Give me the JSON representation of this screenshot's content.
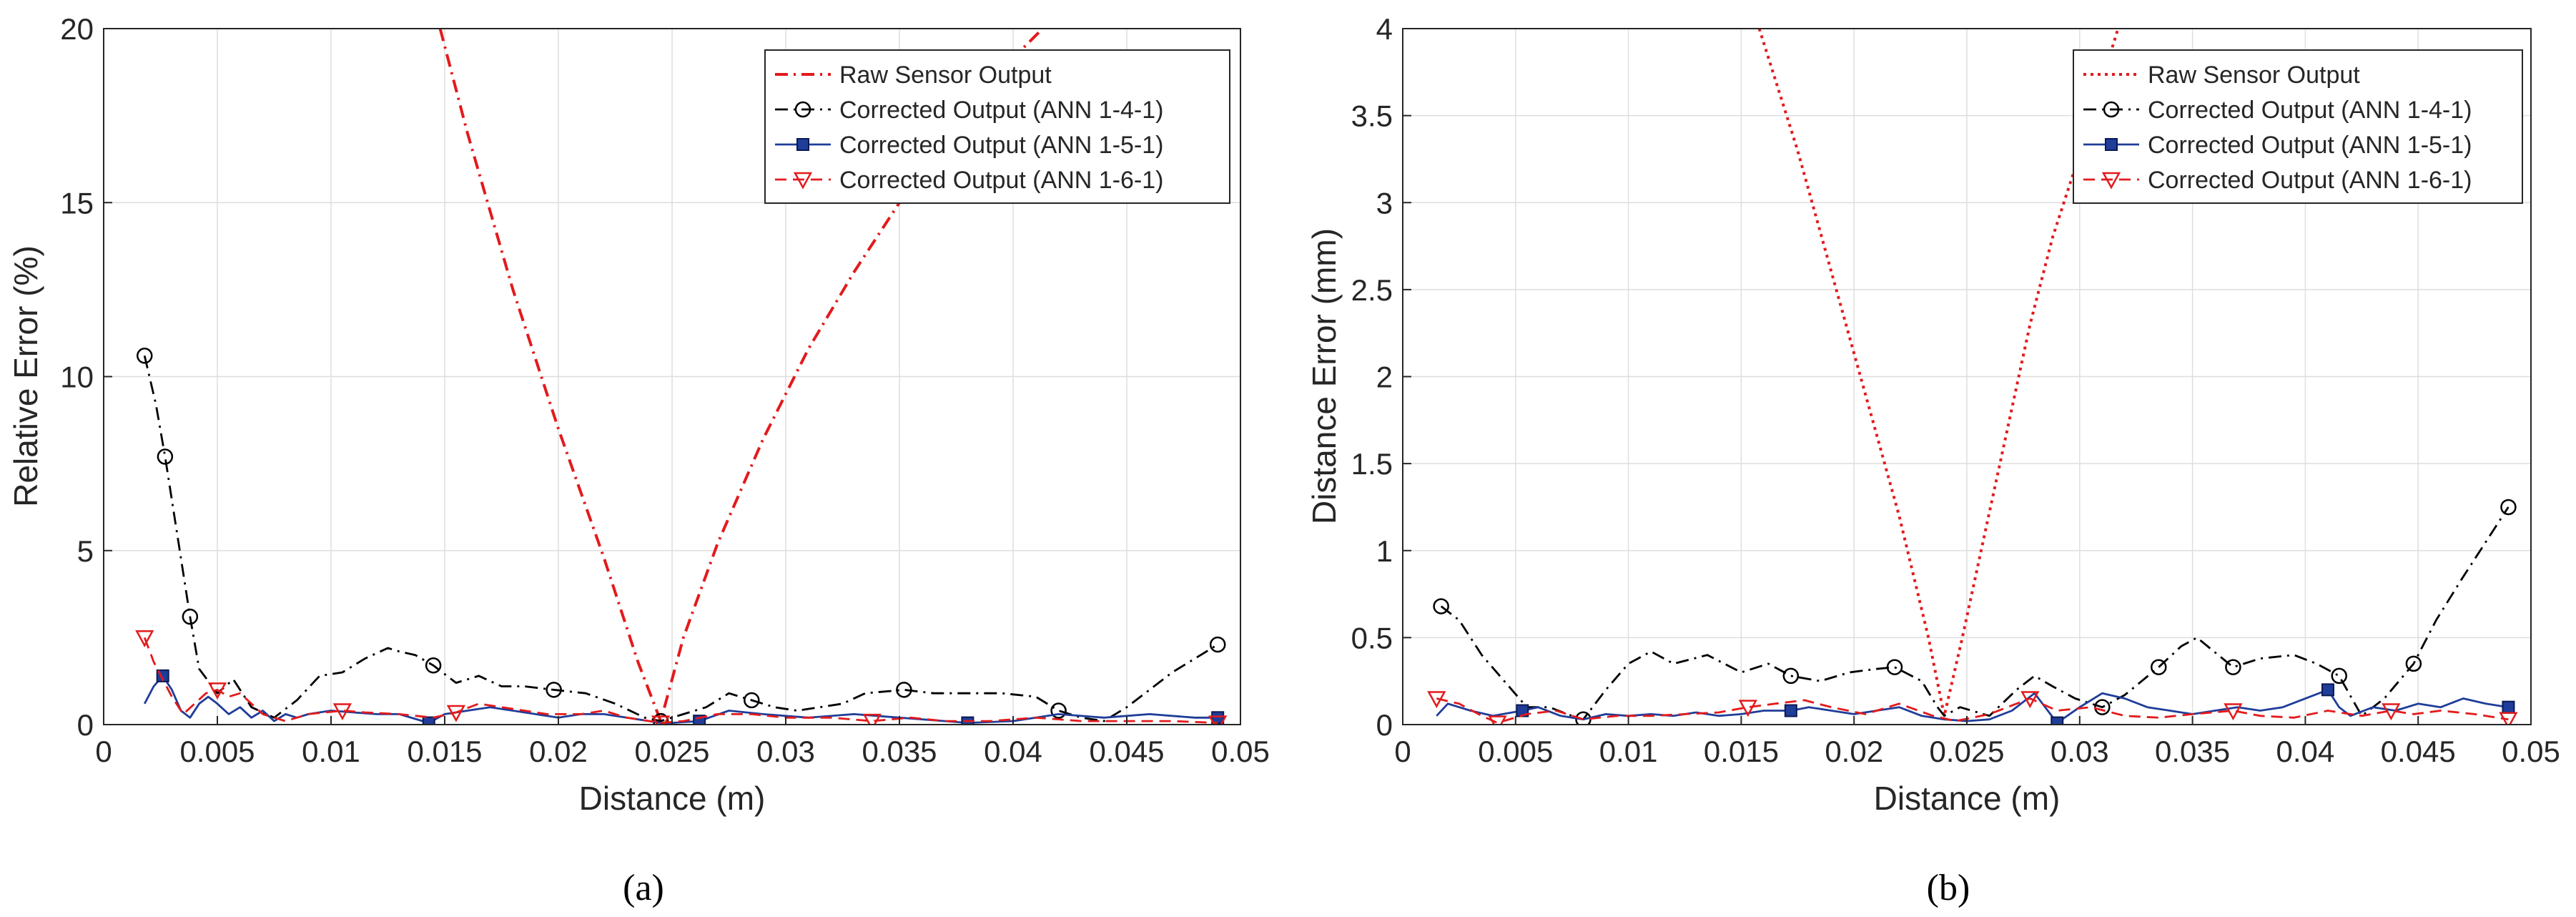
{
  "chart_data": [
    {
      "type": "line",
      "panel_label": "(a)",
      "xlabel": "Distance (m)",
      "ylabel": "Relative Error (%)",
      "xlim": [
        0,
        0.05
      ],
      "ylim": [
        0,
        20
      ],
      "xticks": [
        0,
        0.005,
        0.01,
        0.015,
        0.02,
        0.025,
        0.03,
        0.035,
        0.04,
        0.045,
        0.05
      ],
      "xtick_labels": [
        "0",
        "0.005",
        "0.01",
        "0.015",
        "0.02",
        "0.025",
        "0.03",
        "0.035",
        "0.04",
        "0.045",
        "0.05"
      ],
      "yticks": [
        0,
        5,
        10,
        15,
        20
      ],
      "ytick_labels": [
        "0",
        "5",
        "10",
        "15",
        "20"
      ],
      "grid": true,
      "legend_position": "top-right",
      "series": [
        {
          "name": "Raw Sensor Output",
          "color": "#e31a1c",
          "style": "dashdot",
          "marker": "none",
          "x": [
            0.0148,
            0.016,
            0.018,
            0.02,
            0.022,
            0.0235,
            0.0245,
            0.0255,
            0.027,
            0.029,
            0.031,
            0.033,
            0.035,
            0.037,
            0.039,
            0.0413
          ],
          "y": [
            20,
            17,
            12.5,
            8.5,
            4.8,
            1.8,
            0.1,
            2.5,
            5.2,
            8.2,
            10.8,
            13,
            15,
            16.9,
            18.5,
            20
          ]
        },
        {
          "name": "Corrected Output (ANN 1-4-1)",
          "color": "#000000",
          "style": "dashdot",
          "marker": "circle",
          "x": [
            0.0018,
            0.0023,
            0.0027,
            0.0033,
            0.0038,
            0.0042,
            0.005,
            0.0057,
            0.0065,
            0.0075,
            0.0085,
            0.0095,
            0.0105,
            0.0115,
            0.0125,
            0.013,
            0.0137,
            0.0145,
            0.0155,
            0.0165,
            0.0175,
            0.0185,
            0.0198,
            0.0212,
            0.0225,
            0.0238,
            0.0245,
            0.0255,
            0.0265,
            0.0275,
            0.0285,
            0.0295,
            0.0305,
            0.0315,
            0.0325,
            0.0335,
            0.0352,
            0.0365,
            0.038,
            0.0395,
            0.041,
            0.042,
            0.043,
            0.044,
            0.045,
            0.046,
            0.047,
            0.048,
            0.049
          ],
          "y": [
            10.6,
            9.2,
            7.7,
            5.2,
            3.1,
            1.6,
            0.9,
            1.3,
            0.5,
            0.2,
            0.7,
            1.4,
            1.5,
            1.9,
            2.2,
            2.1,
            2.0,
            1.7,
            1.2,
            1.4,
            1.1,
            1.1,
            1.0,
            0.9,
            0.6,
            0.2,
            0.1,
            0.3,
            0.5,
            0.9,
            0.7,
            0.5,
            0.4,
            0.5,
            0.6,
            0.9,
            1.0,
            0.9,
            0.9,
            0.9,
            0.8,
            0.4,
            0.2,
            0.1,
            0.5,
            1.0,
            1.5,
            1.9,
            2.3
          ],
          "marker_indices": [
            0,
            2,
            4,
            17,
            22,
            26,
            30,
            36,
            41,
            48
          ]
        },
        {
          "name": "Corrected Output (ANN 1-5-1)",
          "color": "#1f3d99",
          "style": "solid",
          "marker": "square",
          "x": [
            0.0018,
            0.0022,
            0.0026,
            0.003,
            0.0034,
            0.0038,
            0.0042,
            0.0046,
            0.005,
            0.0055,
            0.006,
            0.0065,
            0.007,
            0.0075,
            0.008,
            0.0085,
            0.009,
            0.01,
            0.011,
            0.012,
            0.013,
            0.0143,
            0.015,
            0.016,
            0.017,
            0.018,
            0.019,
            0.02,
            0.021,
            0.022,
            0.023,
            0.024,
            0.0245,
            0.025,
            0.0262,
            0.0275,
            0.029,
            0.031,
            0.033,
            0.035,
            0.037,
            0.038,
            0.04,
            0.042,
            0.044,
            0.046,
            0.048,
            0.049
          ],
          "y": [
            0.6,
            1.1,
            1.4,
            1.0,
            0.4,
            0.2,
            0.6,
            0.8,
            0.6,
            0.3,
            0.5,
            0.2,
            0.4,
            0.1,
            0.3,
            0.2,
            0.3,
            0.4,
            0.35,
            0.3,
            0.3,
            0.05,
            0.3,
            0.4,
            0.5,
            0.4,
            0.3,
            0.2,
            0.3,
            0.3,
            0.2,
            0.1,
            0.05,
            0.05,
            0.1,
            0.4,
            0.3,
            0.2,
            0.3,
            0.2,
            0.1,
            0.05,
            0.1,
            0.3,
            0.2,
            0.3,
            0.2,
            0.2
          ],
          "marker_indices": [
            2,
            21,
            34,
            41,
            47
          ]
        },
        {
          "name": "Corrected Output (ANN 1-6-1)",
          "color": "#e31a1c",
          "style": "dashed",
          "marker": "triangle-down",
          "x": [
            0.0018,
            0.0022,
            0.0026,
            0.003,
            0.0035,
            0.004,
            0.0045,
            0.005,
            0.0055,
            0.006,
            0.0065,
            0.007,
            0.0075,
            0.008,
            0.009,
            0.0105,
            0.0115,
            0.013,
            0.0145,
            0.0155,
            0.0165,
            0.0175,
            0.0185,
            0.0195,
            0.021,
            0.022,
            0.023,
            0.024,
            0.0245,
            0.0255,
            0.027,
            0.0285,
            0.03,
            0.032,
            0.0338,
            0.0355,
            0.037,
            0.039,
            0.041,
            0.043,
            0.045,
            0.047,
            0.049
          ],
          "y": [
            2.5,
            1.8,
            1.3,
            0.8,
            0.3,
            0.6,
            0.9,
            1.0,
            0.8,
            0.9,
            0.6,
            0.3,
            0.2,
            0.1,
            0.3,
            0.4,
            0.35,
            0.3,
            0.2,
            0.35,
            0.6,
            0.5,
            0.4,
            0.3,
            0.3,
            0.4,
            0.2,
            0.1,
            0.05,
            0.1,
            0.3,
            0.3,
            0.2,
            0.2,
            0.1,
            0.2,
            0.1,
            0.1,
            0.2,
            0.1,
            0.1,
            0.1,
            0.05
          ],
          "marker_indices": [
            0,
            7,
            15,
            19,
            28,
            34,
            42
          ]
        }
      ]
    },
    {
      "type": "line",
      "panel_label": "(b)",
      "xlabel": "Distance (m)",
      "ylabel": "Distance Error (mm)",
      "xlim": [
        0,
        0.05
      ],
      "ylim": [
        0,
        4
      ],
      "xticks": [
        0,
        0.005,
        0.01,
        0.015,
        0.02,
        0.025,
        0.03,
        0.035,
        0.04,
        0.045,
        0.05
      ],
      "xtick_labels": [
        "0",
        "0.005",
        "0.01",
        "0.015",
        "0.02",
        "0.025",
        "0.03",
        "0.035",
        "0.04",
        "0.045",
        "0.05"
      ],
      "yticks": [
        0,
        0.5,
        1,
        1.5,
        2,
        2.5,
        3,
        3.5,
        4
      ],
      "ytick_labels": [
        "0",
        "0.5",
        "1",
        "1.5",
        "2",
        "2.5",
        "3",
        "3.5",
        "4"
      ],
      "grid": true,
      "legend_position": "top-right",
      "series": [
        {
          "name": "Raw Sensor Output",
          "color": "#e31a1c",
          "style": "dotted",
          "marker": "none",
          "x": [
            0.0158,
            0.0175,
            0.019,
            0.0205,
            0.022,
            0.0233,
            0.024,
            0.0248,
            0.0258,
            0.0268,
            0.0278,
            0.0288,
            0.0298,
            0.0317
          ],
          "y": [
            4,
            3.3,
            2.6,
            1.9,
            1.2,
            0.5,
            0.05,
            0.5,
            1.1,
            1.7,
            2.3,
            2.8,
            3.2,
            4
          ]
        },
        {
          "name": "Corrected Output (ANN 1-4-1)",
          "color": "#000000",
          "style": "dashdot",
          "marker": "circle",
          "x": [
            0.0017,
            0.0025,
            0.0035,
            0.0045,
            0.0055,
            0.0065,
            0.0075,
            0.008,
            0.009,
            0.01,
            0.011,
            0.012,
            0.0135,
            0.015,
            0.0162,
            0.0172,
            0.0185,
            0.0198,
            0.021,
            0.0218,
            0.023,
            0.0237,
            0.024,
            0.0247,
            0.026,
            0.0272,
            0.028,
            0.0288,
            0.0298,
            0.031,
            0.032,
            0.0335,
            0.0345,
            0.0352,
            0.0368,
            0.038,
            0.0395,
            0.0405,
            0.0415,
            0.0425,
            0.0435,
            0.0448,
            0.0458,
            0.047,
            0.048,
            0.049
          ],
          "y": [
            0.68,
            0.6,
            0.4,
            0.25,
            0.1,
            0.1,
            0.05,
            0.03,
            0.2,
            0.35,
            0.42,
            0.35,
            0.4,
            0.3,
            0.35,
            0.28,
            0.25,
            0.3,
            0.32,
            0.33,
            0.25,
            0.1,
            0.05,
            0.1,
            0.05,
            0.2,
            0.28,
            0.22,
            0.15,
            0.1,
            0.17,
            0.33,
            0.45,
            0.5,
            0.33,
            0.38,
            0.4,
            0.35,
            0.28,
            0.05,
            0.15,
            0.35,
            0.6,
            0.85,
            1.05,
            1.25
          ],
          "marker_indices": [
            0,
            7,
            15,
            19,
            29,
            31,
            34,
            38,
            41,
            45
          ]
        },
        {
          "name": "Corrected Output (ANN 1-5-1)",
          "color": "#1f3d99",
          "style": "solid",
          "marker": "square",
          "x": [
            0.0015,
            0.002,
            0.003,
            0.004,
            0.0053,
            0.006,
            0.007,
            0.008,
            0.009,
            0.01,
            0.011,
            0.012,
            0.013,
            0.014,
            0.015,
            0.016,
            0.0172,
            0.018,
            0.019,
            0.02,
            0.021,
            0.022,
            0.023,
            0.024,
            0.025,
            0.026,
            0.027,
            0.028,
            0.029,
            0.03,
            0.031,
            0.032,
            0.033,
            0.034,
            0.035,
            0.036,
            0.037,
            0.038,
            0.039,
            0.041,
            0.0415,
            0.042,
            0.043,
            0.044,
            0.045,
            0.046,
            0.047,
            0.048,
            0.049
          ],
          "y": [
            0.05,
            0.12,
            0.08,
            0.05,
            0.08,
            0.1,
            0.05,
            0.03,
            0.06,
            0.05,
            0.06,
            0.05,
            0.07,
            0.05,
            0.06,
            0.08,
            0.08,
            0.1,
            0.08,
            0.06,
            0.08,
            0.1,
            0.05,
            0.03,
            0.02,
            0.03,
            0.08,
            0.18,
            0.01,
            0.1,
            0.18,
            0.15,
            0.1,
            0.08,
            0.06,
            0.08,
            0.1,
            0.08,
            0.1,
            0.2,
            0.1,
            0.05,
            0.1,
            0.08,
            0.12,
            0.1,
            0.15,
            0.12,
            0.1
          ],
          "marker_indices": [
            4,
            16,
            28,
            39,
            48
          ]
        },
        {
          "name": "Corrected Output (ANN 1-6-1)",
          "color": "#e31a1c",
          "style": "dashed",
          "marker": "triangle-down",
          "x": [
            0.0015,
            0.0025,
            0.0035,
            0.0042,
            0.0055,
            0.0068,
            0.008,
            0.0095,
            0.011,
            0.0125,
            0.014,
            0.0153,
            0.0165,
            0.0178,
            0.019,
            0.0205,
            0.022,
            0.0235,
            0.0245,
            0.026,
            0.0278,
            0.029,
            0.0305,
            0.032,
            0.0335,
            0.035,
            0.0368,
            0.038,
            0.0395,
            0.041,
            0.0425,
            0.0438,
            0.0448,
            0.046,
            0.0475,
            0.049
          ],
          "y": [
            0.15,
            0.12,
            0.05,
            0.01,
            0.06,
            0.08,
            0.03,
            0.05,
            0.05,
            0.06,
            0.07,
            0.1,
            0.12,
            0.14,
            0.1,
            0.06,
            0.12,
            0.05,
            0.02,
            0.06,
            0.15,
            0.08,
            0.1,
            0.05,
            0.04,
            0.06,
            0.08,
            0.05,
            0.04,
            0.08,
            0.05,
            0.08,
            0.06,
            0.08,
            0.06,
            0.03
          ],
          "marker_indices": [
            0,
            3,
            11,
            20,
            26,
            31,
            35
          ]
        }
      ]
    }
  ]
}
